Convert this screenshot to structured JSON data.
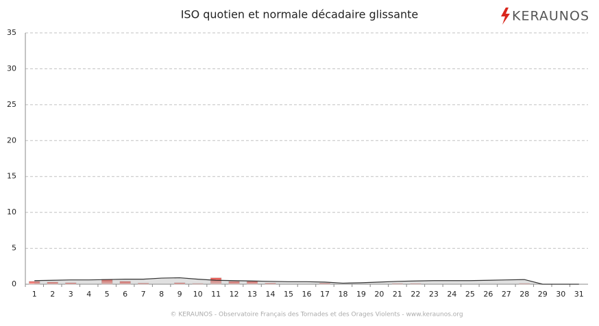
{
  "chart_data": {
    "type": "bar",
    "title": "ISO quotien et normale décadaire glissante",
    "logo": "KERAUNOS",
    "footer": "© KERAUNOS - Observatoire Français des Tornades et des Orages Violents - www.keraunos.org",
    "categories": [
      "1",
      "2",
      "3",
      "4",
      "5",
      "6",
      "7",
      "8",
      "9",
      "10",
      "11",
      "12",
      "13",
      "14",
      "15",
      "16",
      "17",
      "18",
      "19",
      "20",
      "21",
      "22",
      "23",
      "24",
      "25",
      "26",
      "27",
      "28",
      "29",
      "30",
      "31"
    ],
    "series": [
      {
        "type": "bar",
        "color": "#e8504a",
        "values": [
          0.4,
          0.3,
          0.2,
          0,
          0.7,
          0.4,
          0.15,
          0,
          0.2,
          0.1,
          0.9,
          0.4,
          0.4,
          0.15,
          0,
          0,
          0.15,
          0,
          0,
          0,
          0.1,
          0.1,
          0,
          0,
          0,
          0,
          0,
          0.1,
          0,
          0,
          0
        ]
      },
      {
        "type": "area",
        "color": "#333333",
        "values": [
          0.5,
          0.55,
          0.6,
          0.6,
          0.65,
          0.7,
          0.7,
          0.85,
          0.9,
          0.7,
          0.55,
          0.5,
          0.45,
          0.4,
          0.35,
          0.35,
          0.3,
          0.15,
          0.2,
          0.3,
          0.4,
          0.45,
          0.5,
          0.5,
          0.5,
          0.55,
          0.6,
          0.65,
          0,
          0,
          0
        ]
      }
    ],
    "ylim": [
      0,
      35
    ],
    "yticks": [
      0,
      5,
      10,
      15,
      20,
      25,
      30,
      35
    ],
    "grid": true
  }
}
